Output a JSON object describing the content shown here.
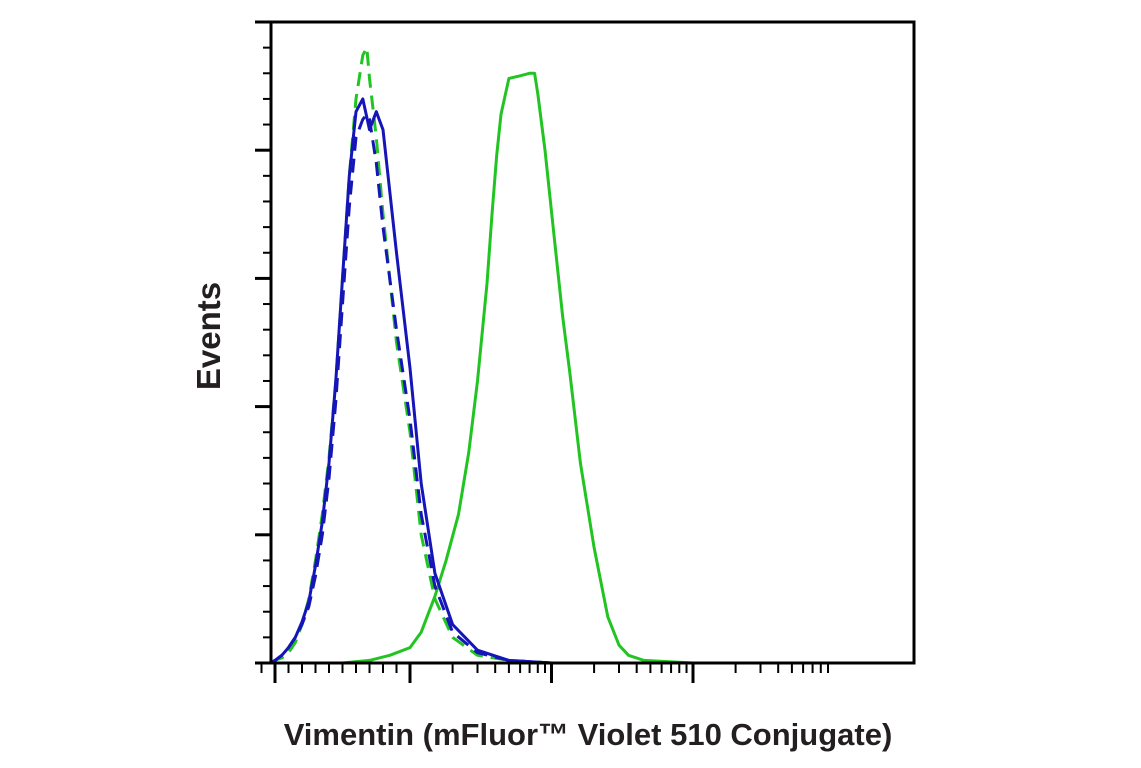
{
  "chart_data": {
    "type": "line",
    "title": "",
    "xlabel": "Vimentin (mFluor™ Violet 510 Conjugate)",
    "ylabel": "Events",
    "x_scale": "log",
    "xlim": [
      -100,
      1000000
    ],
    "ylim": [
      0,
      250
    ],
    "grid": false,
    "legend": "none",
    "series": [
      {
        "color": "#22c422",
        "dash": "solid",
        "points": [
          [
            -100,
            0
          ],
          [
            500,
            0
          ],
          [
            700,
            1
          ],
          [
            850,
            3
          ],
          [
            1000,
            6
          ],
          [
            1200,
            12
          ],
          [
            1500,
            26
          ],
          [
            1800,
            40
          ],
          [
            2200,
            58
          ],
          [
            2600,
            82
          ],
          [
            3000,
            110
          ],
          [
            3500,
            148
          ],
          [
            3800,
            175
          ],
          [
            4100,
            198
          ],
          [
            4400,
            214
          ],
          [
            5000,
            228
          ],
          [
            6000,
            229
          ],
          [
            7000,
            230
          ],
          [
            7600,
            230
          ],
          [
            8000,
            222
          ],
          [
            9000,
            200
          ],
          [
            10500,
            165
          ],
          [
            12000,
            135
          ],
          [
            13500,
            113
          ],
          [
            16000,
            78
          ],
          [
            20000,
            45
          ],
          [
            25000,
            18
          ],
          [
            30000,
            7
          ],
          [
            35000,
            3
          ],
          [
            45000,
            1
          ],
          [
            100000,
            0
          ],
          [
            1000000,
            0
          ]
        ]
      },
      {
        "color": "#22c422",
        "dash": "dashed",
        "points": [
          [
            -100,
            0
          ],
          [
            -30,
            0
          ],
          [
            0,
            1
          ],
          [
            50,
            2
          ],
          [
            100,
            4
          ],
          [
            150,
            8
          ],
          [
            200,
            15
          ],
          [
            250,
            25
          ],
          [
            300,
            40
          ],
          [
            350,
            58
          ],
          [
            400,
            80
          ],
          [
            450,
            110
          ],
          [
            500,
            150
          ],
          [
            550,
            190
          ],
          [
            600,
            220
          ],
          [
            650,
            237
          ],
          [
            680,
            240
          ],
          [
            700,
            228
          ],
          [
            750,
            205
          ],
          [
            800,
            175
          ],
          [
            900,
            125
          ],
          [
            1000,
            90
          ],
          [
            1200,
            50
          ],
          [
            1500,
            25
          ],
          [
            2000,
            10
          ],
          [
            3000,
            3
          ],
          [
            5000,
            1
          ],
          [
            10000,
            0
          ],
          [
            1000000,
            0
          ]
        ]
      },
      {
        "color": "#1515b8",
        "dash": "solid",
        "points": [
          [
            -100,
            0
          ],
          [
            -30,
            0
          ],
          [
            0,
            1
          ],
          [
            50,
            3
          ],
          [
            100,
            6
          ],
          [
            150,
            10
          ],
          [
            200,
            16
          ],
          [
            250,
            24
          ],
          [
            300,
            38
          ],
          [
            350,
            55
          ],
          [
            400,
            78
          ],
          [
            450,
            110
          ],
          [
            500,
            150
          ],
          [
            550,
            190
          ],
          [
            600,
            215
          ],
          [
            650,
            220
          ],
          [
            700,
            208
          ],
          [
            750,
            215
          ],
          [
            800,
            208
          ],
          [
            900,
            160
          ],
          [
            1000,
            115
          ],
          [
            1200,
            70
          ],
          [
            1500,
            35
          ],
          [
            2000,
            15
          ],
          [
            3000,
            5
          ],
          [
            5000,
            1
          ],
          [
            10000,
            0
          ],
          [
            1000000,
            0
          ]
        ]
      },
      {
        "color": "#1515b8",
        "dash": "dashed",
        "points": [
          [
            -100,
            0
          ],
          [
            -30,
            0
          ],
          [
            0,
            1
          ],
          [
            50,
            3
          ],
          [
            100,
            6
          ],
          [
            150,
            10
          ],
          [
            200,
            15
          ],
          [
            250,
            22
          ],
          [
            300,
            34
          ],
          [
            350,
            50
          ],
          [
            400,
            72
          ],
          [
            450,
            102
          ],
          [
            500,
            140
          ],
          [
            550,
            178
          ],
          [
            600,
            205
          ],
          [
            650,
            212
          ],
          [
            680,
            214
          ],
          [
            700,
            212
          ],
          [
            750,
            195
          ],
          [
            800,
            170
          ],
          [
            900,
            130
          ],
          [
            1000,
            95
          ],
          [
            1200,
            58
          ],
          [
            1500,
            30
          ],
          [
            2000,
            12
          ],
          [
            3000,
            4
          ],
          [
            5000,
            1
          ],
          [
            10000,
            0
          ],
          [
            1000000,
            0
          ]
        ]
      }
    ]
  }
}
